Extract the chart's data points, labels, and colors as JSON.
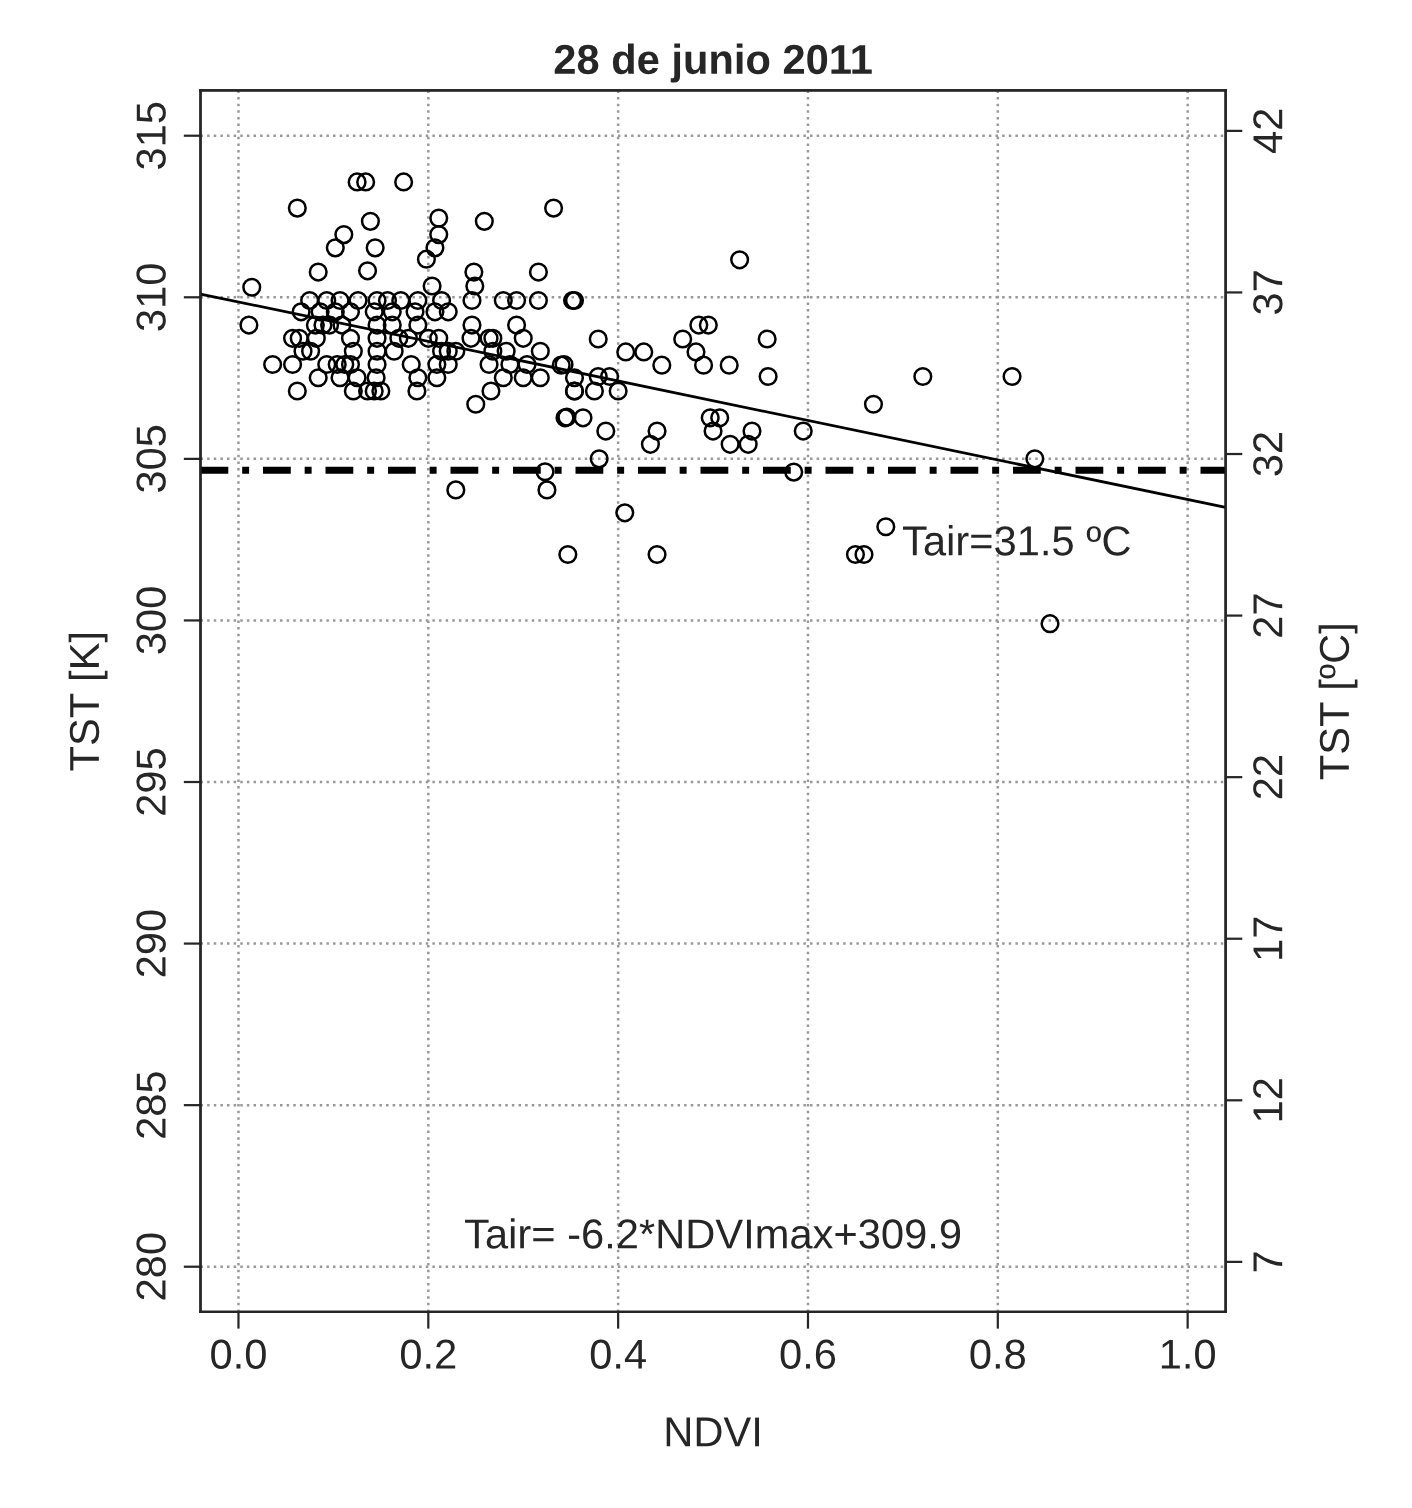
{
  "chart_data": {
    "type": "scatter",
    "title": "28 de junio 2011",
    "xlabel": "NDVI",
    "ylabel": "TST [K]",
    "y2label": "TST [ºC]",
    "xlim": [
      -0.04,
      1.04
    ],
    "ylim": [
      278.6,
      316.4
    ],
    "y2lim": [
      5.45,
      43.25
    ],
    "xticks": [
      {
        "value": 0,
        "label": "0.0"
      },
      {
        "value": 0.2,
        "label": "0.2"
      },
      {
        "value": 0.4,
        "label": "0.4"
      },
      {
        "value": 0.6,
        "label": "0.6"
      },
      {
        "value": 0.8,
        "label": "0.8"
      },
      {
        "value": 1,
        "label": "1.0"
      }
    ],
    "yticks": [
      280,
      285,
      290,
      295,
      300,
      305,
      310,
      315
    ],
    "y2ticks": [
      7,
      12,
      17,
      22,
      27,
      32,
      37,
      42
    ],
    "grid": true,
    "marker": "circle",
    "ref_lines": [
      {
        "axis": "y2",
        "value": 31.5,
        "label": "Tair=31.5 ºC",
        "color": "#000000",
        "line_style": "dashed"
      }
    ],
    "annotations": [
      "Tair= -6.2*NDVImax+309.9"
    ],
    "series": [
      {
        "color": "#000000",
        "x": [
          0.125,
          0.134,
          0.174,
          0.062,
          0.211,
          0.259,
          0.332,
          0.139,
          0.111,
          0.102,
          0.144,
          0.211,
          0.207,
          0.198,
          0.136,
          0.084,
          0.248,
          0.316,
          0.014,
          0.204,
          0.249,
          0.075,
          0.093,
          0.107,
          0.126,
          0.146,
          0.157,
          0.171,
          0.189,
          0.214,
          0.246,
          0.279,
          0.293,
          0.316,
          0.354,
          0.066,
          0.086,
          0.102,
          0.118,
          0.143,
          0.162,
          0.186,
          0.207,
          0.221,
          0.011,
          0.081,
          0.089,
          0.096,
          0.109,
          0.146,
          0.162,
          0.189,
          0.246,
          0.293,
          0.3,
          0.057,
          0.064,
          0.082,
          0.118,
          0.146,
          0.169,
          0.179,
          0.2,
          0.211,
          0.245,
          0.264,
          0.268,
          0.068,
          0.076,
          0.121,
          0.146,
          0.164,
          0.214,
          0.221,
          0.229,
          0.268,
          0.282,
          0.318,
          0.036,
          0.057,
          0.093,
          0.104,
          0.112,
          0.118,
          0.146,
          0.182,
          0.209,
          0.221,
          0.264,
          0.286,
          0.304,
          0.343,
          0.084,
          0.107,
          0.125,
          0.145,
          0.189,
          0.209,
          0.279,
          0.3,
          0.318,
          0.354,
          0.062,
          0.121,
          0.136,
          0.143,
          0.15,
          0.188,
          0.266,
          0.354,
          0.25,
          0.346,
          0.229,
          0.325,
          0.323,
          0.528,
          0.352,
          0.379,
          0.468,
          0.557,
          0.485,
          0.495,
          0.408,
          0.427,
          0.482,
          0.34,
          0.446,
          0.49,
          0.517,
          0.379,
          0.391,
          0.558,
          0.721,
          0.815,
          0.354,
          0.375,
          0.4,
          0.344,
          0.363,
          0.497,
          0.507,
          0.669,
          0.387,
          0.441,
          0.5,
          0.541,
          0.595,
          0.434,
          0.518,
          0.537,
          0.38,
          0.839,
          0.585,
          0.407,
          0.347,
          0.441,
          0.65,
          0.659,
          0.682,
          0.855
        ],
        "values": [
          313.57,
          313.57,
          313.57,
          312.76,
          312.45,
          312.35,
          312.76,
          312.35,
          311.94,
          311.53,
          311.53,
          311.94,
          311.53,
          311.18,
          310.82,
          310.78,
          310.78,
          310.78,
          310.31,
          310.35,
          310.35,
          309.9,
          309.9,
          309.9,
          309.9,
          309.9,
          309.9,
          309.9,
          309.9,
          309.9,
          309.9,
          309.9,
          309.9,
          309.9,
          309.9,
          309.55,
          309.55,
          309.55,
          309.55,
          309.55,
          309.55,
          309.55,
          309.55,
          309.55,
          309.14,
          309.14,
          309.14,
          309.14,
          309.14,
          309.14,
          309.14,
          309.14,
          309.14,
          309.14,
          308.73,
          308.73,
          308.73,
          308.73,
          308.73,
          308.73,
          308.73,
          308.73,
          308.73,
          308.73,
          308.73,
          308.73,
          308.73,
          308.33,
          308.33,
          308.33,
          308.33,
          308.33,
          308.33,
          308.33,
          308.33,
          308.33,
          308.33,
          308.33,
          307.92,
          307.92,
          307.92,
          307.92,
          307.92,
          307.92,
          307.92,
          307.92,
          307.92,
          307.92,
          307.92,
          307.92,
          307.92,
          307.92,
          307.51,
          307.51,
          307.51,
          307.51,
          307.51,
          307.51,
          307.51,
          307.51,
          307.51,
          307.51,
          307.1,
          307.1,
          307.1,
          307.1,
          307.1,
          307.1,
          307.1,
          307.1,
          306.69,
          306.29,
          304.04,
          304.04,
          304.6,
          311.16,
          309.9,
          308.71,
          308.71,
          308.71,
          309.14,
          309.14,
          308.31,
          308.31,
          308.31,
          307.9,
          307.9,
          307.9,
          307.9,
          307.55,
          307.55,
          307.55,
          307.55,
          307.55,
          307.1,
          307.1,
          307.1,
          306.27,
          306.27,
          306.27,
          306.27,
          306.69,
          305.86,
          305.86,
          305.86,
          305.86,
          305.86,
          305.45,
          305.45,
          305.45,
          305.0,
          305.0,
          304.59,
          303.33,
          302.04,
          302.04,
          302.04,
          302.04,
          302.9,
          299.9
        ]
      },
      {
        "type": "line",
        "marker": "none",
        "color": "#000000",
        "x": [
          -0.04,
          1.04
        ],
        "values": [
          310.1,
          303.5
        ]
      }
    ]
  }
}
